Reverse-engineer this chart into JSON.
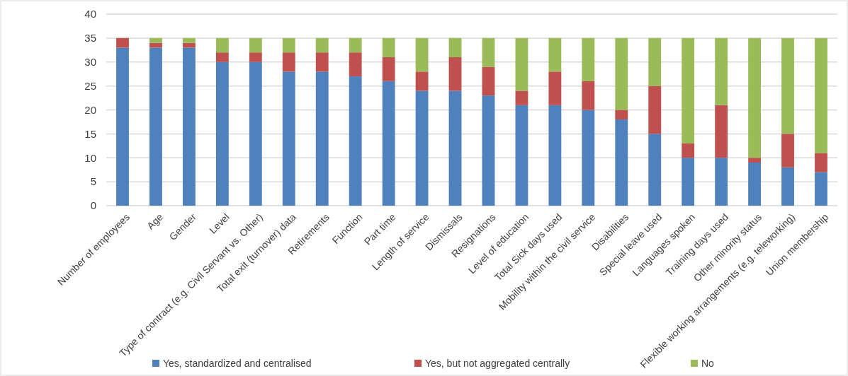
{
  "chart_data": {
    "type": "bar",
    "stacked": true,
    "categories": [
      "Number of employees",
      "Age",
      "Gender",
      "Level",
      "Type of contract (e.g. Civil Servant vs. Other)",
      "Total exit (turnover) data",
      "Retirements",
      "Function",
      "Part time",
      "Length of service",
      "Dismissals",
      "Resignations",
      "Level of education",
      "Total Sick days used",
      "Mobility within the civil service",
      "Disabilities",
      "Special leave used",
      "Languages spoken",
      "Training days used",
      "Other minority status",
      "Flexible working arrangements (e.g. teleworking)",
      "Union membership"
    ],
    "series": [
      {
        "name": "Yes, standardized and centralised",
        "color": "#4f81bd",
        "values": [
          33,
          33,
          33,
          30,
          30,
          28,
          28,
          27,
          26,
          24,
          24,
          23,
          21,
          21,
          20,
          18,
          15,
          10,
          10,
          9,
          8,
          7
        ]
      },
      {
        "name": "Yes, but not aggregated centrally",
        "color": "#c0504d",
        "values": [
          2,
          1,
          1,
          2,
          2,
          4,
          4,
          5,
          5,
          4,
          7,
          6,
          3,
          7,
          6,
          2,
          10,
          3,
          11,
          1,
          7,
          4
        ]
      },
      {
        "name": "No",
        "color": "#9bbb59",
        "values": [
          0,
          1,
          1,
          3,
          3,
          3,
          3,
          3,
          4,
          7,
          4,
          6,
          11,
          7,
          9,
          15,
          10,
          22,
          14,
          25,
          20,
          24
        ]
      }
    ],
    "ylim": [
      0,
      40
    ],
    "yticks": [
      0,
      5,
      10,
      15,
      20,
      25,
      30,
      35,
      40
    ],
    "grid": "y",
    "legend": "bottom"
  }
}
